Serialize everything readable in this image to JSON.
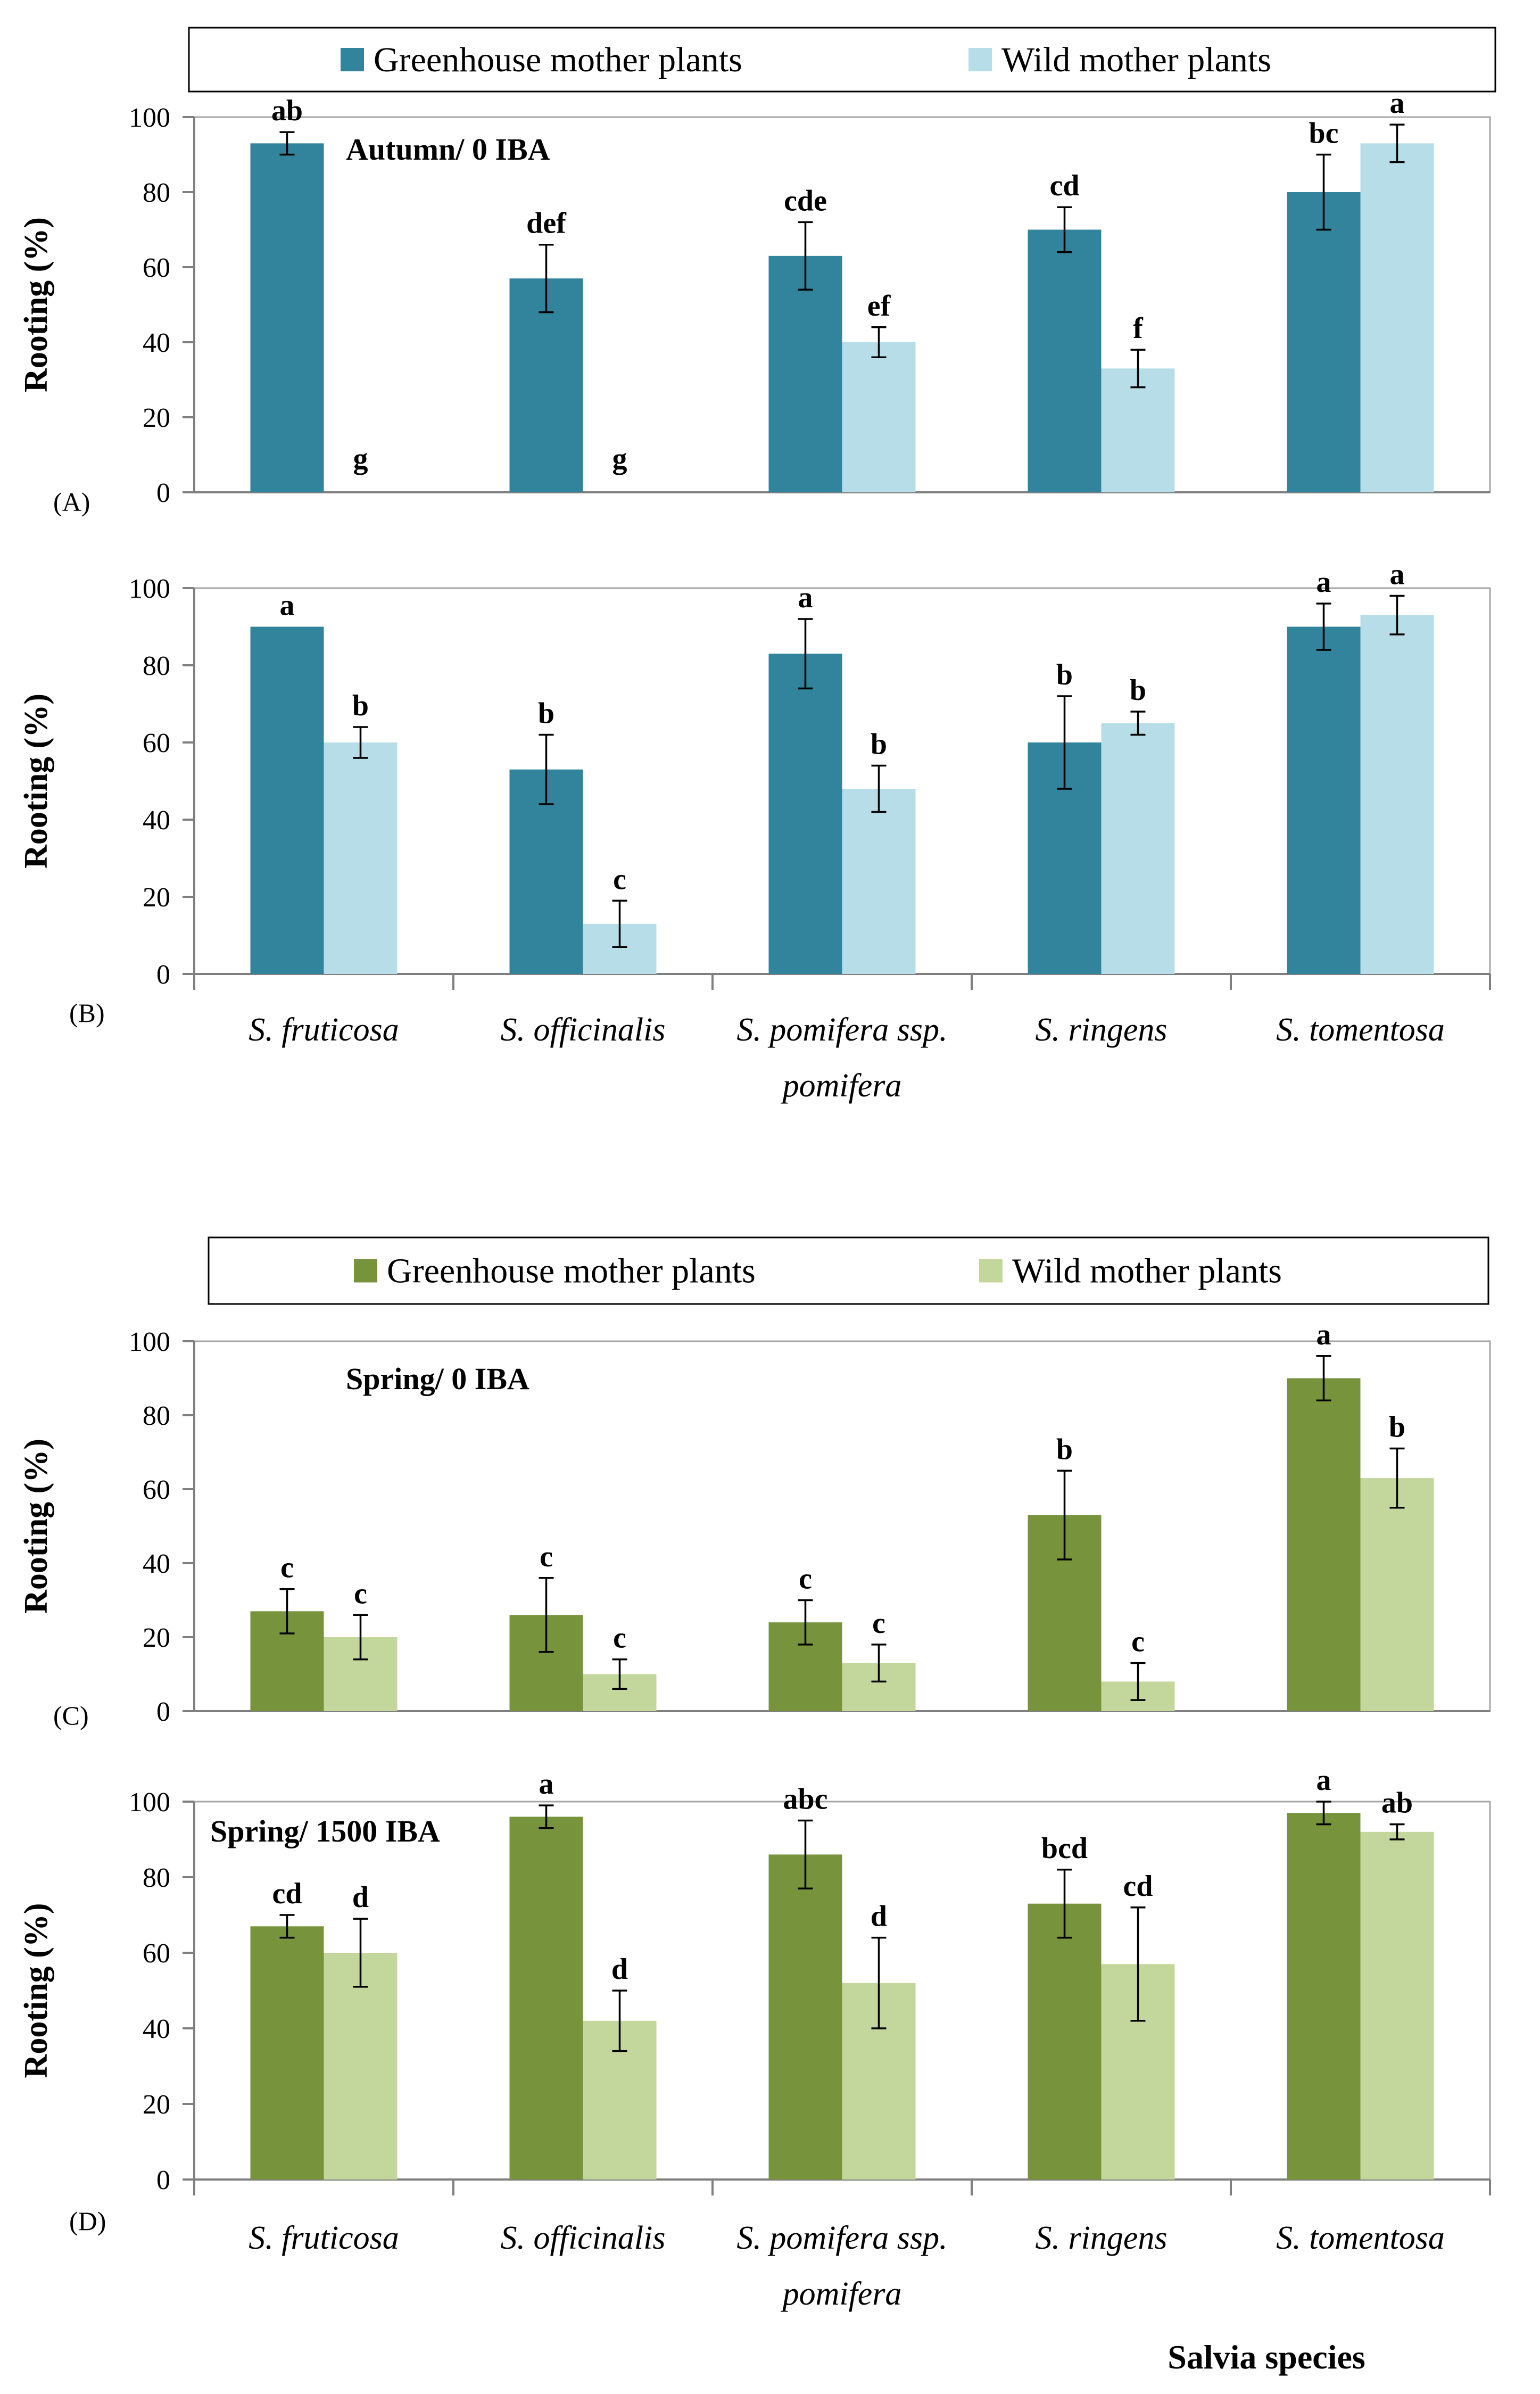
{
  "figure": {
    "legend_top": {
      "items": [
        {
          "label": "Greenhouse mother plants",
          "color": "#31849B"
        },
        {
          "label": "Wild mother plants",
          "color": "#B7DDE8"
        }
      ]
    },
    "legend_bottom": {
      "items": [
        {
          "label": "Greenhouse mother plants",
          "color": "#77933C"
        },
        {
          "label": "Wild mother plants",
          "color": "#C3D69B"
        }
      ]
    },
    "categories_top": [
      [
        "S. fruticosa"
      ],
      [
        "S. officinalis"
      ],
      [
        "S. pomifera ssp.",
        "pomifera"
      ],
      [
        "S. ringens"
      ],
      [
        "S. tomentosa"
      ]
    ],
    "categories_bottom": [
      [
        "S. fruticosa"
      ],
      [
        "S. officinalis"
      ],
      [
        "S. pomifera ssp.",
        "pomifera"
      ],
      [
        "S. ringens"
      ],
      [
        "S. tomentosa"
      ]
    ],
    "x_title": "Salvia species"
  },
  "chart_data": [
    {
      "panel": "(A)",
      "type": "bar",
      "annotation": "Autumn/ 0 IBA",
      "ylabel": "Rooting (%)",
      "ylim": [
        0,
        100
      ],
      "yticks": [
        0,
        20,
        40,
        60,
        80,
        100
      ],
      "categories": [
        "S. fruticosa",
        "S. officinalis",
        "S. pomifera ssp. pomifera",
        "S. ringens",
        "S. tomentosa"
      ],
      "series": [
        {
          "name": "Greenhouse mother plants",
          "color": "#31849B",
          "values": [
            93,
            57,
            63,
            70,
            80
          ],
          "errors": [
            3,
            9,
            9,
            6,
            10
          ],
          "letters": [
            "ab",
            "def",
            "cde",
            "cd",
            "bc"
          ]
        },
        {
          "name": "Wild mother plants",
          "color": "#B7DDE8",
          "values": [
            0,
            0,
            40,
            33,
            93
          ],
          "errors": [
            0,
            0,
            4,
            5,
            5
          ],
          "letters": [
            "g",
            "g",
            "ef",
            "f",
            "a"
          ]
        }
      ]
    },
    {
      "panel": "(B)",
      "type": "bar",
      "annotation": "",
      "ylabel": "Rooting (%)",
      "ylim": [
        0,
        100
      ],
      "yticks": [
        0,
        20,
        40,
        60,
        80,
        100
      ],
      "categories": [
        "S. fruticosa",
        "S. officinalis",
        "S. pomifera ssp. pomifera",
        "S. ringens",
        "S. tomentosa"
      ],
      "series": [
        {
          "name": "Greenhouse mother plants",
          "color": "#31849B",
          "values": [
            90,
            53,
            83,
            60,
            90
          ],
          "errors": [
            0,
            9,
            9,
            12,
            6
          ],
          "letters": [
            "a",
            "b",
            "a",
            "b",
            "a"
          ]
        },
        {
          "name": "Wild mother plants",
          "color": "#B7DDE8",
          "values": [
            60,
            13,
            48,
            65,
            93
          ],
          "errors": [
            4,
            6,
            6,
            3,
            5
          ],
          "letters": [
            "b",
            "c",
            "b",
            "b",
            "a"
          ]
        }
      ]
    },
    {
      "panel": "(C)",
      "type": "bar",
      "annotation": "Spring/ 0 IBA",
      "ylabel": "Rooting (%)",
      "ylim": [
        0,
        100
      ],
      "yticks": [
        0,
        20,
        40,
        60,
        80,
        100
      ],
      "categories": [
        "S. fruticosa",
        "S. officinalis",
        "S. pomifera ssp. pomifera",
        "S. ringens",
        "S. tomentosa"
      ],
      "series": [
        {
          "name": "Greenhouse mother plants",
          "color": "#77933C",
          "values": [
            27,
            26,
            24,
            53,
            90
          ],
          "errors": [
            6,
            10,
            6,
            12,
            6
          ],
          "letters": [
            "c",
            "c",
            "c",
            "b",
            "a"
          ]
        },
        {
          "name": "Wild mother plants",
          "color": "#C3D69B",
          "values": [
            20,
            10,
            13,
            8,
            63
          ],
          "errors": [
            6,
            4,
            5,
            5,
            8
          ],
          "letters": [
            "c",
            "c",
            "c",
            "c",
            "b"
          ]
        }
      ]
    },
    {
      "panel": "(D)",
      "type": "bar",
      "annotation": "Spring/ 1500 IBA",
      "ylabel": "Rooting (%)",
      "ylim": [
        0,
        100
      ],
      "yticks": [
        0,
        20,
        40,
        60,
        80,
        100
      ],
      "xlabel": "Salvia species",
      "categories": [
        "S. fruticosa",
        "S. officinalis",
        "S. pomifera ssp. pomifera",
        "S. ringens",
        "S. tomentosa"
      ],
      "series": [
        {
          "name": "Greenhouse mother plants",
          "color": "#77933C",
          "values": [
            67,
            96,
            86,
            73,
            97
          ],
          "errors": [
            3,
            3,
            9,
            9,
            3
          ],
          "letters": [
            "cd",
            "a",
            "abc",
            "bcd",
            "a"
          ]
        },
        {
          "name": "Wild mother plants",
          "color": "#C3D69B",
          "values": [
            60,
            42,
            52,
            57,
            92
          ],
          "errors": [
            9,
            8,
            12,
            15,
            2
          ],
          "letters": [
            "d",
            "d",
            "d",
            "cd",
            "ab"
          ]
        }
      ]
    }
  ]
}
